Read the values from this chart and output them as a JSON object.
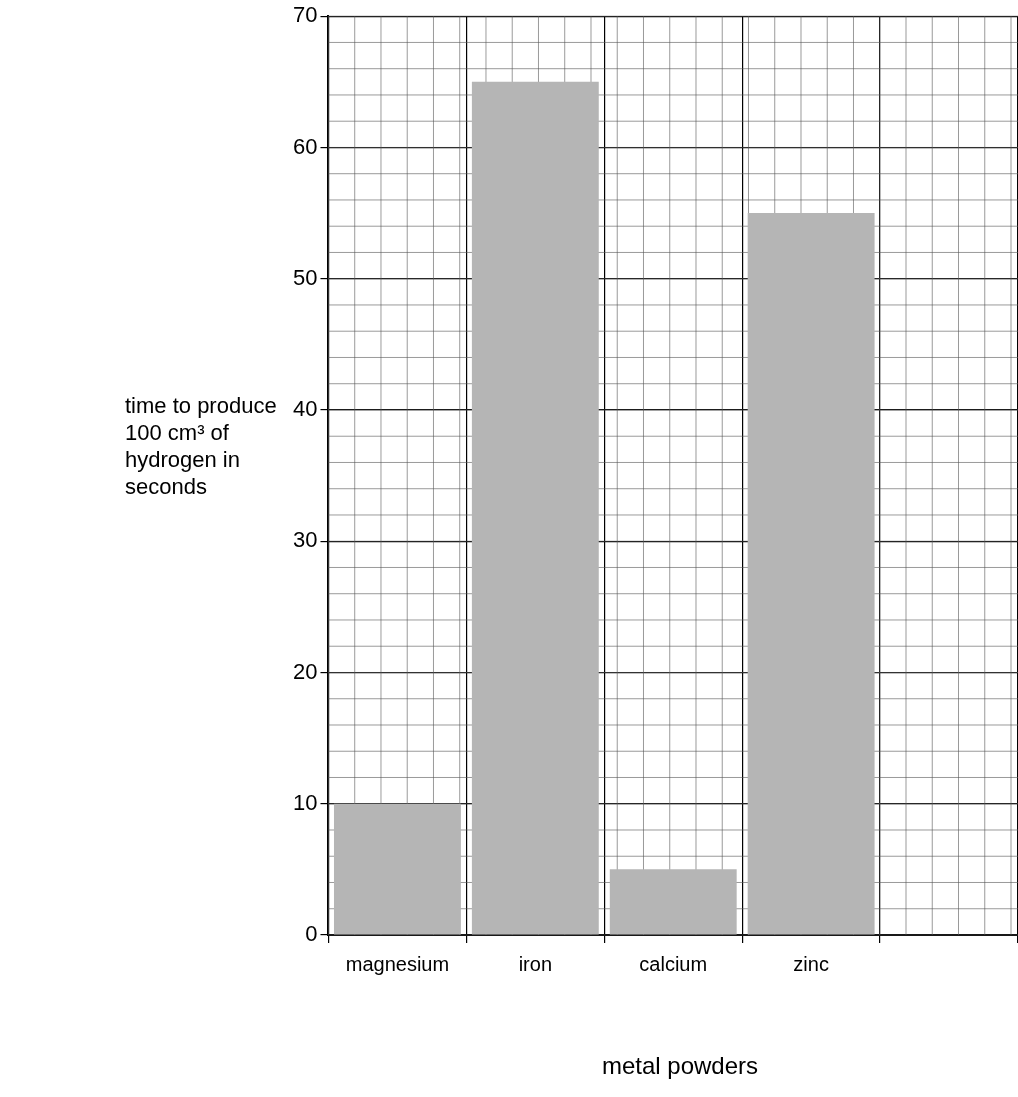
{
  "chart_data": {
    "type": "bar",
    "xlabel": "metal powders",
    "ylabel": "time to produce 100 cm³ of hydrogen in seconds",
    "categories": [
      "magnesium",
      "iron",
      "calcium",
      "zinc",
      null
    ],
    "values": [
      10,
      65,
      5,
      55,
      null
    ],
    "color": "#b5b5b5",
    "ylim": [
      0,
      70
    ],
    "yticks": [
      0,
      10,
      20,
      30,
      40,
      50,
      60,
      70
    ],
    "grid": true
  }
}
